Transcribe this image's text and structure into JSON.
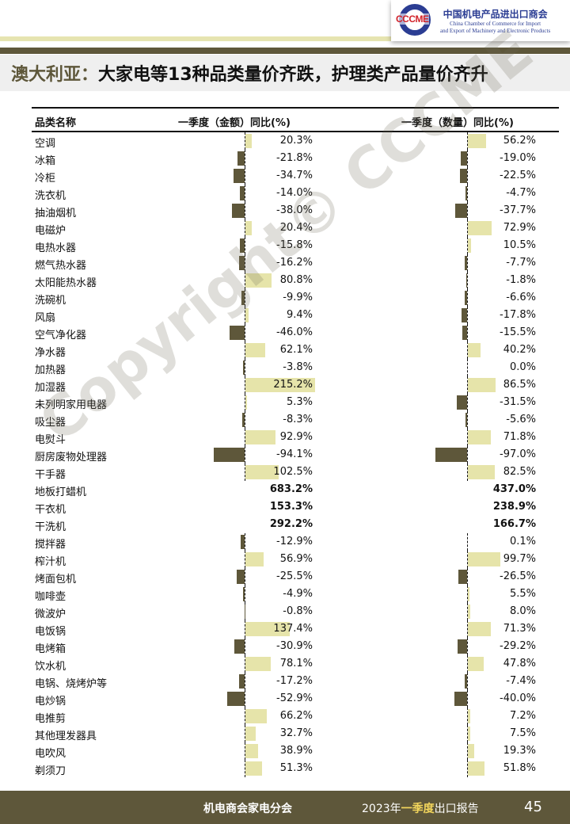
{
  "logo": {
    "abbr": "CCCME",
    "name_cn": "中国机电产品进出口商会",
    "name_en_1": "China Chamber of Commerce for Import",
    "name_en_2": "and Export of Machinery and Electronic Products"
  },
  "title": {
    "country": "澳大利亚：",
    "headline": "大家电等13种品类量价齐跌，护理类产品量价齐升"
  },
  "table": {
    "headers": {
      "name": "品类名称",
      "value": "一季度（金额）同比(%)",
      "quantity": "一季度（数量）同比(%)"
    },
    "colors": {
      "positive": "#e6e4aa",
      "negative": "#5e573a"
    },
    "rows": [
      {
        "name": "空调",
        "value": 20.3,
        "quantity": 56.2
      },
      {
        "name": "冰箱",
        "value": -21.8,
        "quantity": -19.0
      },
      {
        "name": "冷柜",
        "value": -34.7,
        "quantity": -22.5
      },
      {
        "name": "洗衣机",
        "value": -14.0,
        "quantity": -4.7
      },
      {
        "name": "抽油烟机",
        "value": -38.0,
        "quantity": -37.7
      },
      {
        "name": "电磁炉",
        "value": 20.4,
        "quantity": 72.9
      },
      {
        "name": "电热水器",
        "value": -15.8,
        "quantity": 10.5
      },
      {
        "name": "燃气热水器",
        "value": -16.2,
        "quantity": -7.7
      },
      {
        "name": "太阳能热水器",
        "value": 80.8,
        "quantity": -1.8
      },
      {
        "name": "洗碗机",
        "value": -9.9,
        "quantity": -6.6
      },
      {
        "name": "风扇",
        "value": 9.4,
        "quantity": -17.8
      },
      {
        "name": "空气净化器",
        "value": -46.0,
        "quantity": -15.5
      },
      {
        "name": "净水器",
        "value": 62.1,
        "quantity": 40.2
      },
      {
        "name": "加热器",
        "value": -3.8,
        "quantity": 0.0
      },
      {
        "name": "加湿器",
        "value": 215.2,
        "quantity": 86.5
      },
      {
        "name": "未列明家用电器",
        "value": 5.3,
        "quantity": -31.5
      },
      {
        "name": "吸尘器",
        "value": -8.3,
        "quantity": -5.6
      },
      {
        "name": "电熨斗",
        "value": 92.9,
        "quantity": 71.8
      },
      {
        "name": "厨房废物处理器",
        "value": -94.1,
        "quantity": -97.0
      },
      {
        "name": "干手器",
        "value": 102.5,
        "quantity": 82.5
      },
      {
        "name": "地板打蜡机",
        "value": 683.2,
        "quantity": 437.0,
        "highlight": true
      },
      {
        "name": "干衣机",
        "value": 153.3,
        "quantity": 238.9,
        "highlight": true
      },
      {
        "name": "干洗机",
        "value": 292.2,
        "quantity": 166.7,
        "highlight": true
      },
      {
        "name": "搅拌器",
        "value": -12.9,
        "quantity": 0.1
      },
      {
        "name": "榨汁机",
        "value": 56.9,
        "quantity": 99.7
      },
      {
        "name": "烤面包机",
        "value": -25.5,
        "quantity": -26.5
      },
      {
        "name": "咖啡壶",
        "value": -4.9,
        "quantity": 5.5
      },
      {
        "name": "微波炉",
        "value": -0.8,
        "quantity": 8.0
      },
      {
        "name": "电饭锅",
        "value": 137.4,
        "quantity": 71.3
      },
      {
        "name": "电烤箱",
        "value": -30.9,
        "quantity": -29.2
      },
      {
        "name": "饮水机",
        "value": 78.1,
        "quantity": 47.8
      },
      {
        "name": "电锅、烧烤炉等",
        "value": -17.2,
        "quantity": -7.4
      },
      {
        "name": "电炒锅",
        "value": -52.9,
        "quantity": -40.0
      },
      {
        "name": "电推剪",
        "value": 66.2,
        "quantity": 7.2
      },
      {
        "name": "其他理发器具",
        "value": 32.7,
        "quantity": 7.5
      },
      {
        "name": "电吹风",
        "value": 38.9,
        "quantity": 19.3
      },
      {
        "name": "剃须刀",
        "value": 51.3,
        "quantity": 51.8
      }
    ]
  },
  "watermark": "Copyright© CCCME",
  "footer": {
    "org": "机电商会家电分会",
    "report_year": "2023年",
    "report_quarter": "一季度",
    "report_suffix": "出口报告",
    "page": "45"
  }
}
